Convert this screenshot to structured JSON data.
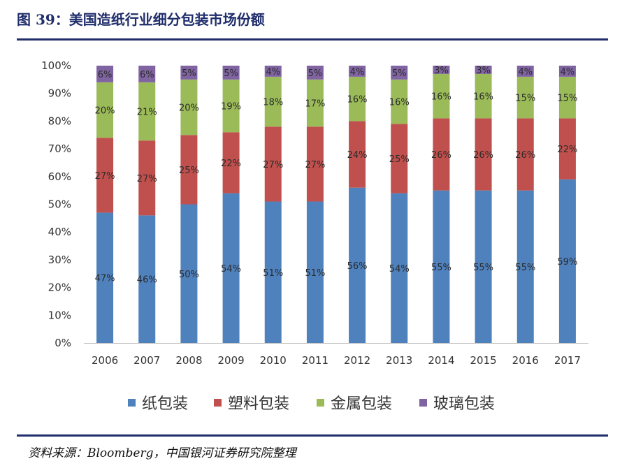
{
  "header": {
    "title": "图 39：美国造纸行业细分包装市场份额"
  },
  "footer": {
    "source": "资料来源：Bloomberg，中国银河证券研究院整理"
  },
  "colors": {
    "paper": "#4f81bd",
    "plastic": "#c0504d",
    "metal": "#9bbb59",
    "glass": "#8064a2",
    "rule": "#1f2d6b"
  },
  "chart_data": {
    "type": "bar",
    "stacked": true,
    "title": "美国造纸行业细分包装市场份额",
    "xlabel": "",
    "ylabel": "",
    "ylim": [
      0,
      100
    ],
    "yticks": [
      0,
      10,
      20,
      30,
      40,
      50,
      60,
      70,
      80,
      90,
      100
    ],
    "yticks_labels": [
      "0%",
      "10%",
      "20%",
      "30%",
      "40%",
      "50%",
      "60%",
      "70%",
      "80%",
      "90%",
      "100%"
    ],
    "categories": [
      "2006",
      "2007",
      "2008",
      "2009",
      "2010",
      "2011",
      "2012",
      "2013",
      "2014",
      "2015",
      "2016",
      "2017"
    ],
    "legend_position": "bottom",
    "series": [
      {
        "name": "纸包装",
        "color": "#4f81bd",
        "values": [
          47,
          46,
          50,
          54,
          51,
          51,
          56,
          54,
          55,
          55,
          55,
          59
        ],
        "labels": [
          "47%",
          "46%",
          "50%",
          "54%",
          "51%",
          "51%",
          "56%",
          "54%",
          "55%",
          "55%",
          "55%",
          "59%"
        ]
      },
      {
        "name": "塑料包装",
        "color": "#c0504d",
        "values": [
          27,
          27,
          25,
          22,
          27,
          27,
          24,
          25,
          26,
          26,
          26,
          22
        ],
        "labels": [
          "27%",
          "27%",
          "25%",
          "22%",
          "27%",
          "27%",
          "24%",
          "25%",
          "26%",
          "26%",
          "26%",
          "22%"
        ]
      },
      {
        "name": "金属包装",
        "color": "#9bbb59",
        "values": [
          20,
          21,
          20,
          19,
          18,
          17,
          16,
          16,
          16,
          16,
          15,
          15
        ],
        "labels": [
          "20%",
          "21%",
          "20%",
          "19%",
          "18%",
          "17%",
          "16%",
          "16%",
          "16%",
          "16%",
          "15%",
          "15%"
        ]
      },
      {
        "name": "玻璃包装",
        "color": "#8064a2",
        "values": [
          6,
          6,
          5,
          5,
          4,
          5,
          4,
          5,
          3,
          3,
          4,
          4
        ],
        "labels": [
          "6%",
          "6%",
          "5%",
          "5%",
          "4%",
          "5%",
          "4%",
          "5%",
          "3%",
          "3%",
          "4%",
          "4%"
        ]
      }
    ]
  }
}
